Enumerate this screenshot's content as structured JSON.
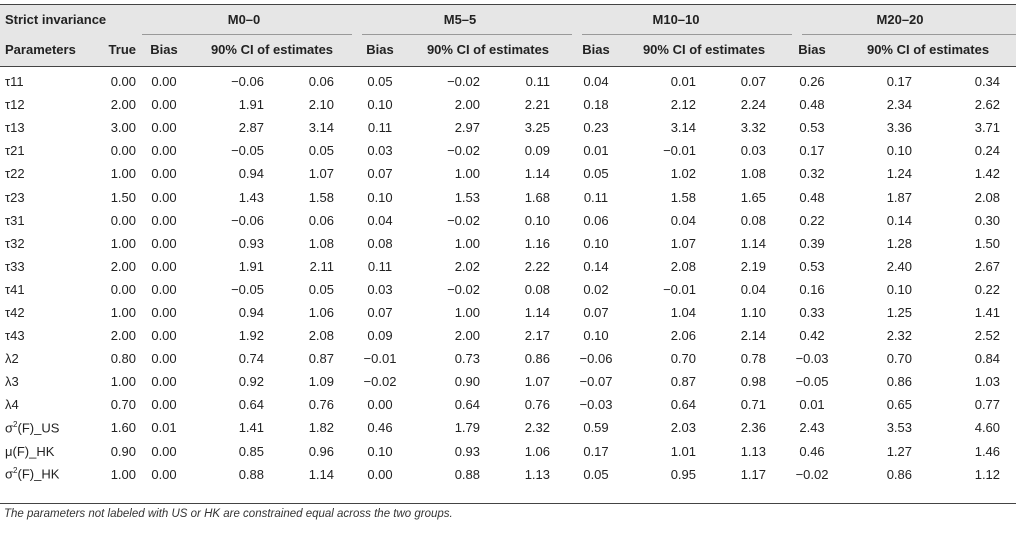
{
  "header": {
    "section": "Strict invariance",
    "groups": [
      "M0–0",
      "M5–5",
      "M10–10",
      "M20–20"
    ],
    "col_params": "Parameters",
    "col_true": "True",
    "col_bias": "Bias",
    "col_ci": "90% CI of estimates"
  },
  "rows": [
    {
      "param": "τ11",
      "true": "0.00",
      "v": [
        "0.00",
        "−0.06",
        "0.06",
        "0.05",
        "−0.02",
        "0.11",
        "0.04",
        "0.01",
        "0.07",
        "0.26",
        "0.17",
        "0.34"
      ]
    },
    {
      "param": "τ12",
      "true": "2.00",
      "v": [
        "0.00",
        "1.91",
        "2.10",
        "0.10",
        "2.00",
        "2.21",
        "0.18",
        "2.12",
        "2.24",
        "0.48",
        "2.34",
        "2.62"
      ]
    },
    {
      "param": "τ13",
      "true": "3.00",
      "v": [
        "0.00",
        "2.87",
        "3.14",
        "0.11",
        "2.97",
        "3.25",
        "0.23",
        "3.14",
        "3.32",
        "0.53",
        "3.36",
        "3.71"
      ]
    },
    {
      "param": "τ21",
      "true": "0.00",
      "v": [
        "0.00",
        "−0.05",
        "0.05",
        "0.03",
        "−0.02",
        "0.09",
        "0.01",
        "−0.01",
        "0.03",
        "0.17",
        "0.10",
        "0.24"
      ]
    },
    {
      "param": "τ22",
      "true": "1.00",
      "v": [
        "0.00",
        "0.94",
        "1.07",
        "0.07",
        "1.00",
        "1.14",
        "0.05",
        "1.02",
        "1.08",
        "0.32",
        "1.24",
        "1.42"
      ]
    },
    {
      "param": "τ23",
      "true": "1.50",
      "v": [
        "0.00",
        "1.43",
        "1.58",
        "0.10",
        "1.53",
        "1.68",
        "0.11",
        "1.58",
        "1.65",
        "0.48",
        "1.87",
        "2.08"
      ]
    },
    {
      "param": "τ31",
      "true": "0.00",
      "v": [
        "0.00",
        "−0.06",
        "0.06",
        "0.04",
        "−0.02",
        "0.10",
        "0.06",
        "0.04",
        "0.08",
        "0.22",
        "0.14",
        "0.30"
      ]
    },
    {
      "param": "τ32",
      "true": "1.00",
      "v": [
        "0.00",
        "0.93",
        "1.08",
        "0.08",
        "1.00",
        "1.16",
        "0.10",
        "1.07",
        "1.14",
        "0.39",
        "1.28",
        "1.50"
      ]
    },
    {
      "param": "τ33",
      "true": "2.00",
      "v": [
        "0.00",
        "1.91",
        "2.11",
        "0.11",
        "2.02",
        "2.22",
        "0.14",
        "2.08",
        "2.19",
        "0.53",
        "2.40",
        "2.67"
      ]
    },
    {
      "param": "τ41",
      "true": "0.00",
      "v": [
        "0.00",
        "−0.05",
        "0.05",
        "0.03",
        "−0.02",
        "0.08",
        "0.02",
        "−0.01",
        "0.04",
        "0.16",
        "0.10",
        "0.22"
      ]
    },
    {
      "param": "τ42",
      "true": "1.00",
      "v": [
        "0.00",
        "0.94",
        "1.06",
        "0.07",
        "1.00",
        "1.14",
        "0.07",
        "1.04",
        "1.10",
        "0.33",
        "1.25",
        "1.41"
      ]
    },
    {
      "param": "τ43",
      "true": "2.00",
      "v": [
        "0.00",
        "1.92",
        "2.08",
        "0.09",
        "2.00",
        "2.17",
        "0.10",
        "2.06",
        "2.14",
        "0.42",
        "2.32",
        "2.52"
      ]
    },
    {
      "param": "λ2",
      "true": "0.80",
      "v": [
        "0.00",
        "0.74",
        "0.87",
        "−0.01",
        "0.73",
        "0.86",
        "−0.06",
        "0.70",
        "0.78",
        "−0.03",
        "0.70",
        "0.84"
      ]
    },
    {
      "param": "λ3",
      "true": "1.00",
      "v": [
        "0.00",
        "0.92",
        "1.09",
        "−0.02",
        "0.90",
        "1.07",
        "−0.07",
        "0.87",
        "0.98",
        "−0.05",
        "0.86",
        "1.03"
      ]
    },
    {
      "param": "λ4",
      "true": "0.70",
      "v": [
        "0.00",
        "0.64",
        "0.76",
        "0.00",
        "0.64",
        "0.76",
        "−0.03",
        "0.64",
        "0.71",
        "0.01",
        "0.65",
        "0.77"
      ]
    },
    {
      "param": "σ2(F)_US",
      "true": "1.60",
      "v": [
        "0.01",
        "1.41",
        "1.82",
        "0.46",
        "1.79",
        "2.32",
        "0.59",
        "2.03",
        "2.36",
        "2.43",
        "3.53",
        "4.60"
      ]
    },
    {
      "param": "μ(F)_HK",
      "true": "0.90",
      "v": [
        "0.00",
        "0.85",
        "0.96",
        "0.10",
        "0.93",
        "1.06",
        "0.17",
        "1.01",
        "1.13",
        "0.46",
        "1.27",
        "1.46"
      ]
    },
    {
      "param": "σ2(F)_HK",
      "true": "1.00",
      "v": [
        "0.00",
        "0.88",
        "1.14",
        "0.00",
        "0.88",
        "1.13",
        "0.05",
        "0.95",
        "1.17",
        "−0.02",
        "0.86",
        "1.12"
      ]
    }
  ],
  "footnote": "The parameters not labeled with US or HK are constrained equal across the two groups."
}
